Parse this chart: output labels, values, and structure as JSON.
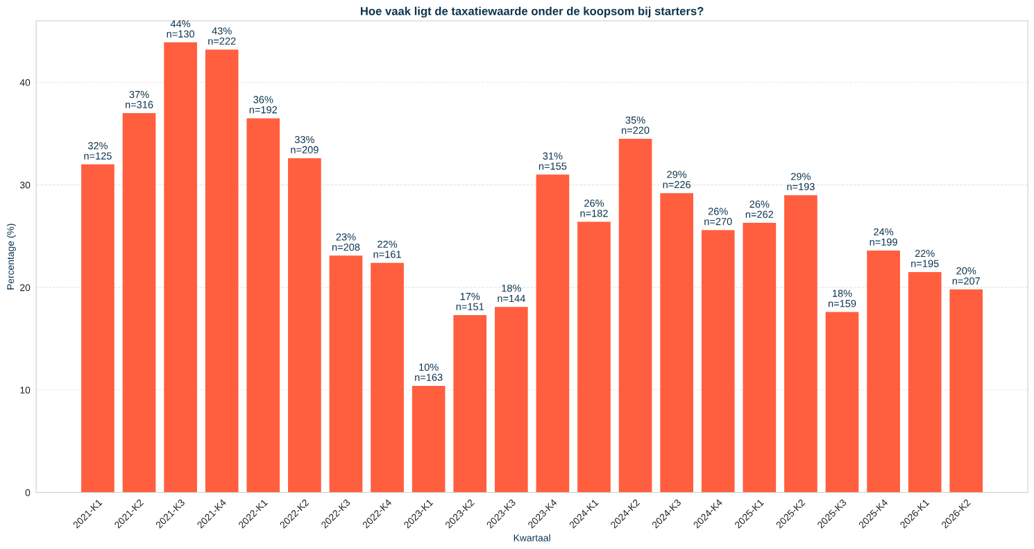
{
  "chart_data": {
    "type": "bar",
    "title": "Hoe vaak ligt de taxatiewaarde onder de koopsom bij starters?",
    "xlabel": "Kwartaal",
    "ylabel": "Percentage (%)",
    "categories": [
      "2021-K1",
      "2021-K2",
      "2021-K3",
      "2021-K4",
      "2022-K1",
      "2022-K2",
      "2022-K3",
      "2022-K4",
      "2023-K1",
      "2023-K2",
      "2023-K3",
      "2023-K4",
      "2024-K1",
      "2024-K2",
      "2024-K3",
      "2024-K4",
      "2025-K1",
      "2025-K2",
      "2025-K3",
      "2025-K4",
      "2026-K1",
      "2026-K2"
    ],
    "values": [
      32.0,
      37.0,
      43.9,
      43.2,
      36.5,
      32.6,
      23.1,
      22.4,
      10.4,
      17.3,
      18.1,
      31.0,
      26.4,
      34.5,
      29.2,
      25.6,
      26.3,
      29.0,
      17.6,
      23.6,
      21.5,
      19.8
    ],
    "value_labels": [
      "32%\nn=125",
      "37%\nn=316",
      "44%\nn=130",
      "43%\nn=222",
      "36%\nn=192",
      "33%\nn=209",
      "23%\nn=208",
      "22%\nn=161",
      "10%\nn=163",
      "17%\nn=151",
      "18%\nn=144",
      "31%\nn=155",
      "26%\nn=182",
      "35%\nn=220",
      "29%\nn=226",
      "26%\nn=270",
      "26%\nn=262",
      "29%\nn=193",
      "18%\nn=159",
      "24%\nn=199",
      "22%\nn=195",
      "20%\nn=207"
    ],
    "color": "#ff5f3f",
    "ylim": [
      0,
      46
    ],
    "yticks": [
      0,
      10,
      20,
      30,
      40
    ],
    "grid": "y",
    "legend": false
  }
}
